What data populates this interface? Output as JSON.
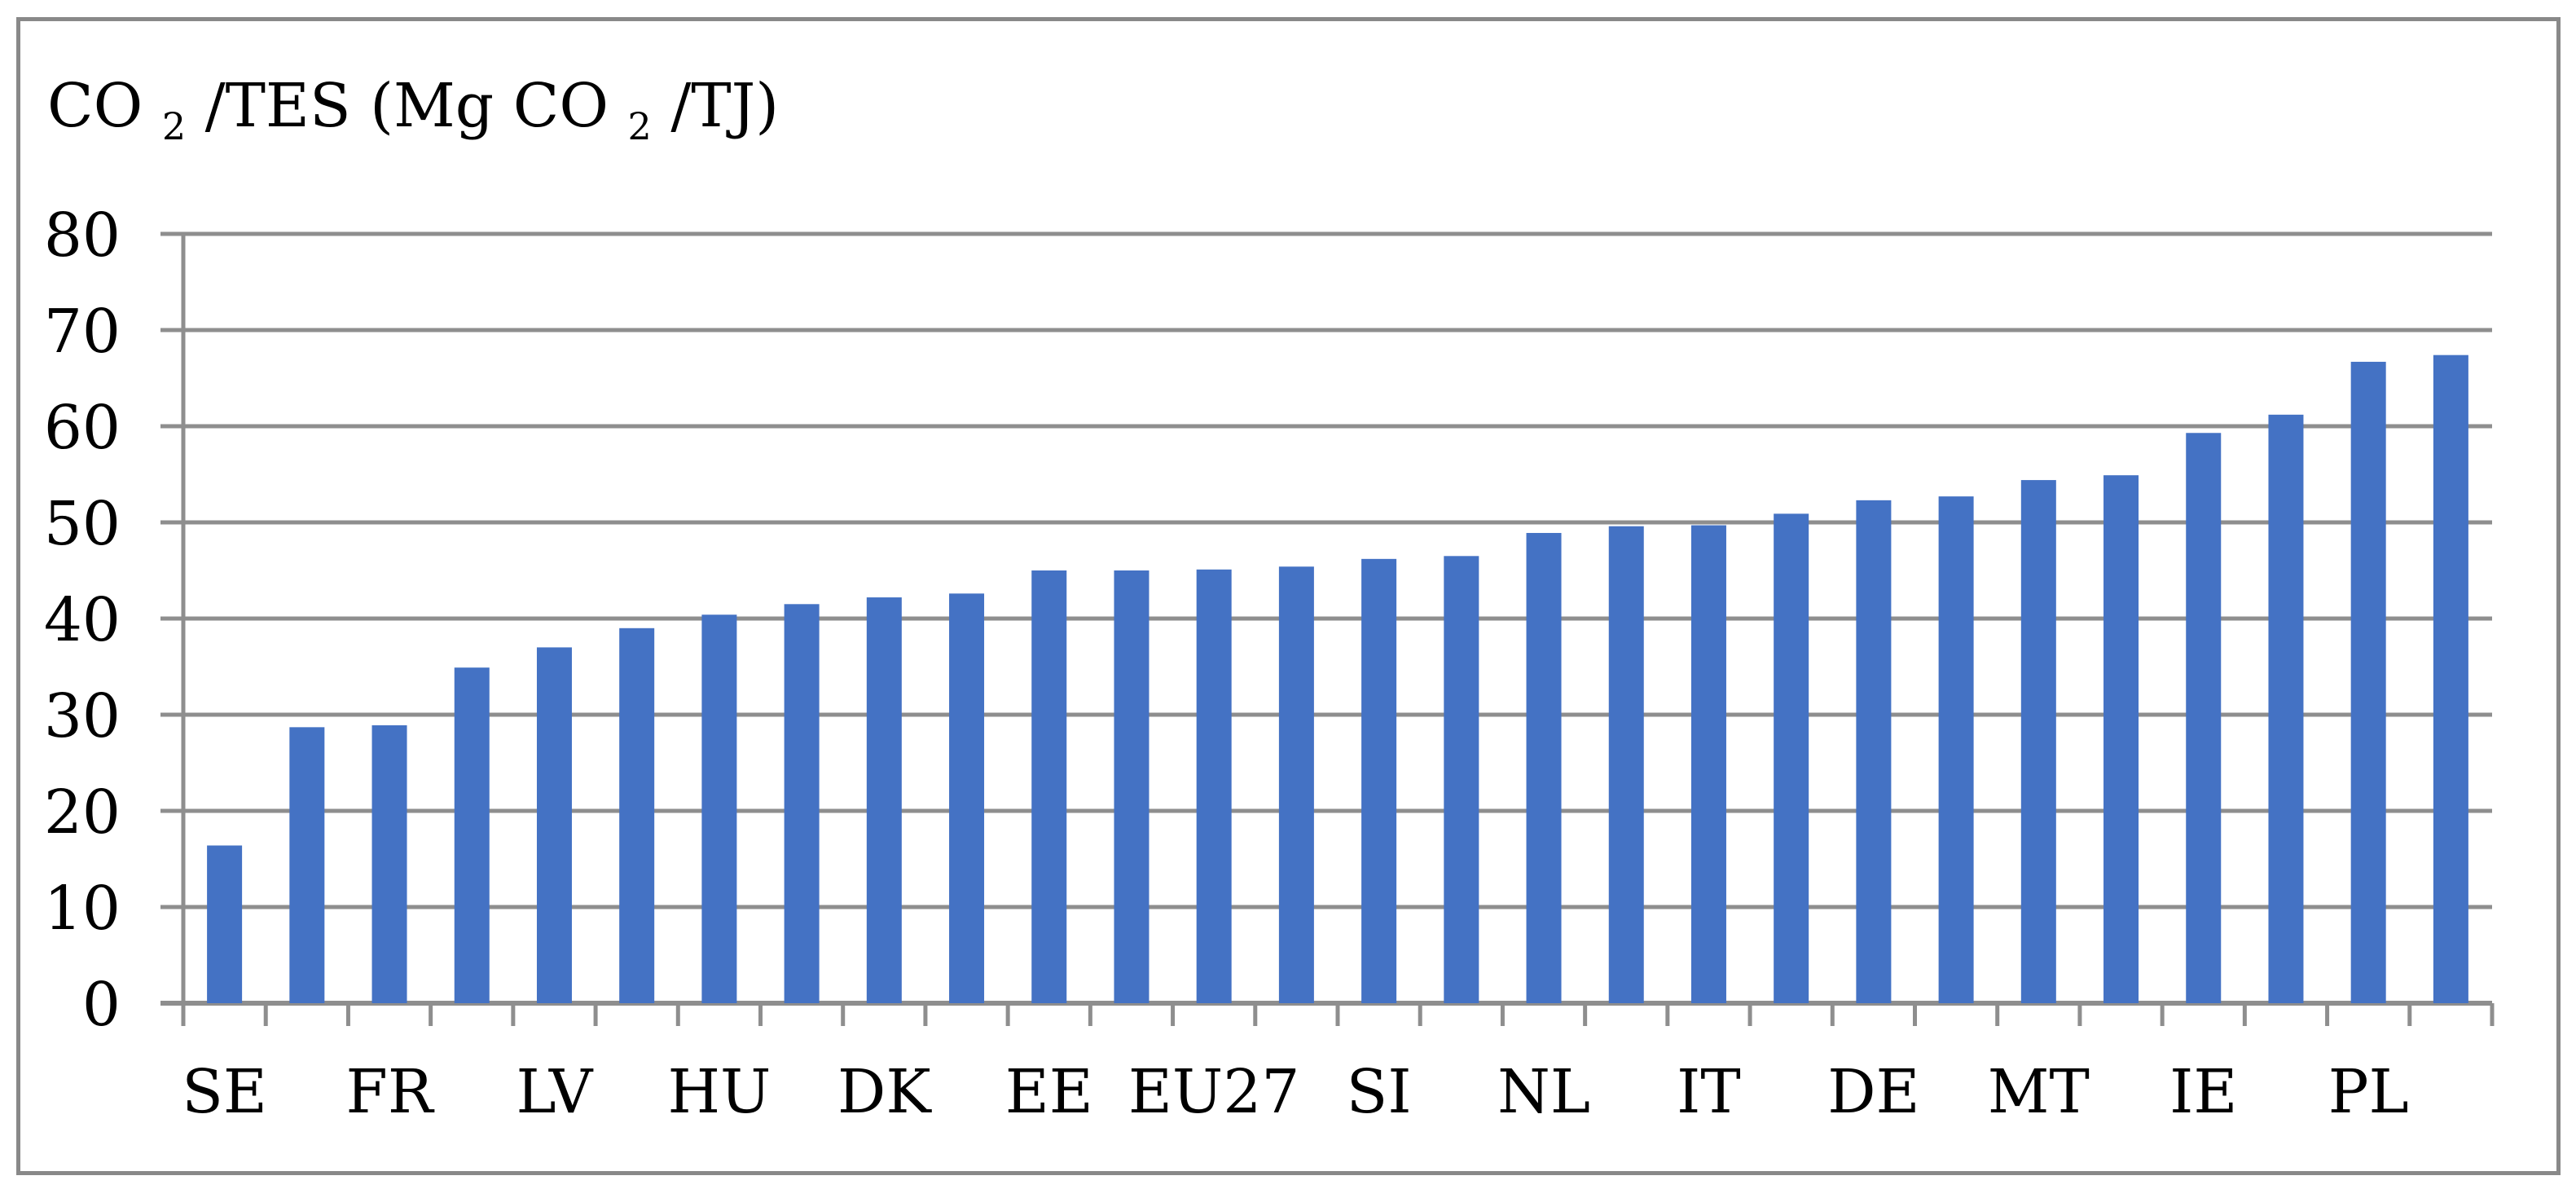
{
  "figure": {
    "title_parts": [
      "CO",
      "2",
      "/TES (Mg CO",
      "2",
      "/TJ)"
    ],
    "border_color": "#898989",
    "background": "#ffffff"
  },
  "chart_data": {
    "type": "bar",
    "title": "CO2/TES (Mg CO2/TJ)",
    "xlabel": "",
    "ylabel": "",
    "ylim": [
      0,
      80
    ],
    "y_ticks": [
      0,
      10,
      20,
      30,
      40,
      50,
      60,
      70,
      80
    ],
    "grid": true,
    "legend": "none",
    "x_label_interval": 2,
    "bar_color": "#4472C4",
    "grid_color": "#8E8E8E",
    "axis_color": "#8E8E8E",
    "categories": [
      "SE",
      "",
      "FR",
      "",
      "LV",
      "",
      "HU",
      "",
      "DK",
      "",
      "EE",
      "",
      "EU27",
      "",
      "SI",
      "",
      "NL",
      "",
      "IT",
      "",
      "DE",
      "",
      "MT",
      "",
      "IE",
      "",
      "PL",
      ""
    ],
    "values": [
      16.4,
      28.7,
      28.9,
      34.9,
      37.0,
      39.0,
      40.4,
      41.5,
      42.2,
      42.6,
      45.0,
      45.0,
      45.1,
      45.4,
      46.2,
      46.5,
      48.9,
      49.6,
      49.7,
      50.9,
      52.3,
      52.7,
      54.4,
      54.9,
      59.3,
      61.2,
      66.7,
      67.4
    ]
  }
}
